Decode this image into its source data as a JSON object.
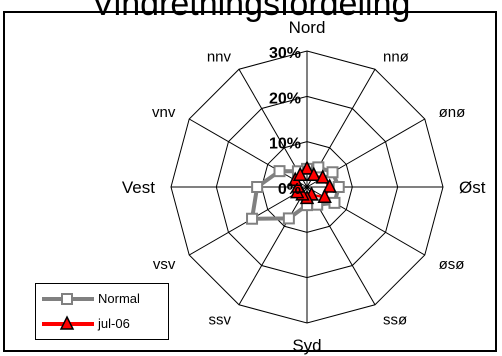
{
  "title": "Vindretningsfordeling",
  "chart_data": {
    "type": "radar",
    "title": "Vindretningsfordeling",
    "directions": [
      "Nord",
      "nnø",
      "ønø",
      "Øst",
      "øsø",
      "ssø",
      "Syd",
      "ssv",
      "vsv",
      "Vest",
      "vnv",
      "nnv"
    ],
    "r_ticks": [
      "0%",
      "10%",
      "20%",
      "30%"
    ],
    "r_max": 30,
    "grid": true,
    "legend_position": "bottom-left",
    "series": [
      {
        "name": "Normal",
        "color": "#808080",
        "marker": "square",
        "values": [
          4,
          5,
          6.5,
          7,
          7,
          4.5,
          4,
          8,
          14,
          11,
          7,
          4
        ]
      },
      {
        "name": "jul-06",
        "color": "#ff0000",
        "marker": "triangle",
        "values": [
          4,
          3,
          4,
          5,
          4.5,
          2,
          2.5,
          2,
          2.5,
          2,
          3,
          3
        ]
      }
    ]
  }
}
